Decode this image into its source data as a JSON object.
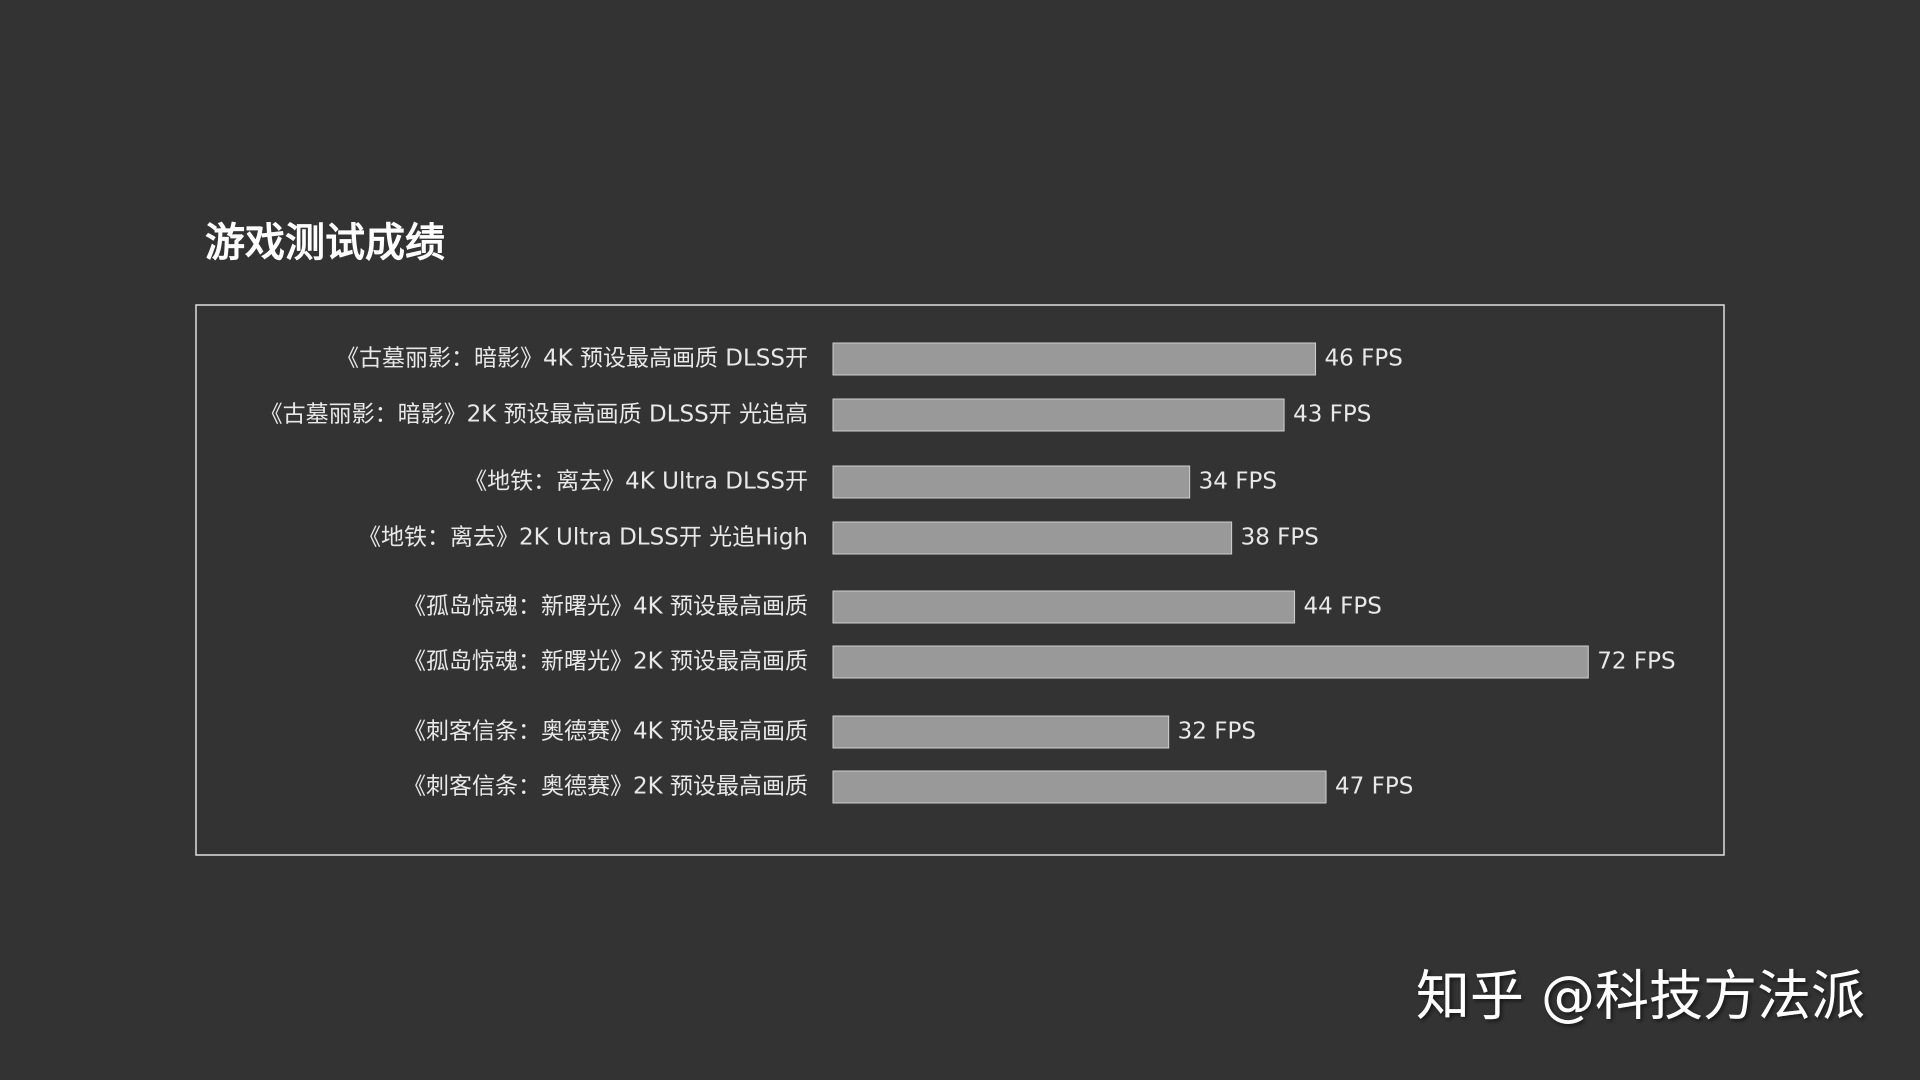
{
  "chart_data": {
    "type": "bar",
    "orientation": "horizontal",
    "title": "游戏测试成绩",
    "categories": [
      "《古墓丽影：暗影》4K 预设最高画质 DLSS开",
      "《古墓丽影：暗影》2K 预设最高画质 DLSS开 光追高",
      "《地铁：离去》4K Ultra DLSS开",
      "《地铁：离去》2K Ultra DLSS开  光追High",
      "《孤岛惊魂：新曙光》4K 预设最高画质",
      "《孤岛惊魂：新曙光》2K 预设最高画质",
      "《刺客信条：奥德赛》4K 预设最高画质",
      "《刺客信条：奥德赛》2K 预设最高画质"
    ],
    "values": [
      46,
      43,
      34,
      38,
      44,
      72,
      32,
      47
    ],
    "value_labels": [
      "46 FPS",
      "43 FPS",
      "34 FPS",
      "38 FPS",
      "44 FPS",
      "72 FPS",
      "32 FPS",
      "47 FPS"
    ],
    "color": "#999999"
  },
  "watermark": "知乎 @科技方法派"
}
